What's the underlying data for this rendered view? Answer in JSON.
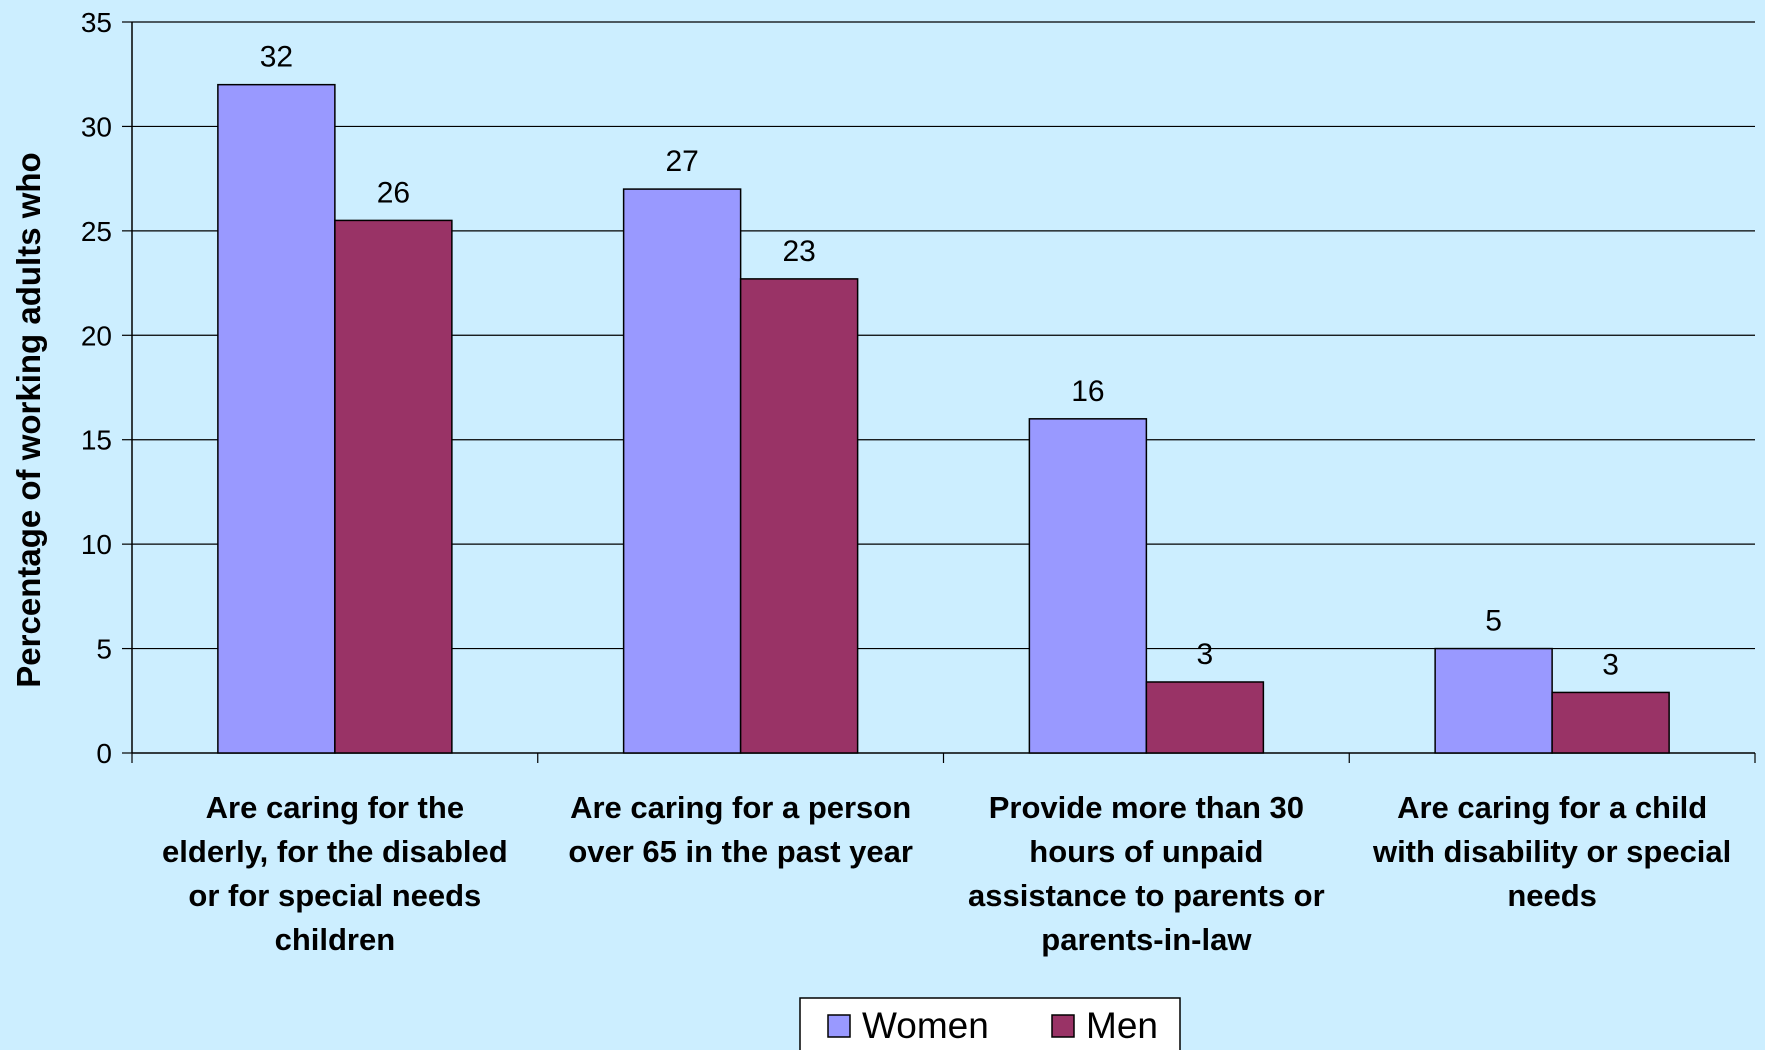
{
  "chart_data": {
    "type": "bar",
    "title": "",
    "xlabel": "",
    "ylabel": "Percentage of working adults who",
    "ylim": [
      0,
      35
    ],
    "yticks": [
      0,
      5,
      10,
      15,
      20,
      25,
      30,
      35
    ],
    "grid": true,
    "legend_position": "bottom",
    "categories": [
      [
        "Are caring for the",
        "elderly, for the disabled",
        "or for special needs",
        "children"
      ],
      [
        "Are caring for a person",
        "over 65 in the past year"
      ],
      [
        "Provide more than 30",
        "hours of unpaid",
        "assistance to parents or",
        "parents-in-law"
      ],
      [
        "Are caring for a child",
        "with disability or special",
        "needs"
      ]
    ],
    "series": [
      {
        "name": "Women",
        "color": "#9999ff",
        "values": [
          32,
          27,
          16,
          5
        ],
        "labels": [
          "32",
          "27",
          "16",
          "5"
        ]
      },
      {
        "name": "Men",
        "color": "#993366",
        "values": [
          25.5,
          22.7,
          3.4,
          2.9
        ],
        "labels": [
          "26",
          "23",
          "3",
          "3"
        ]
      }
    ],
    "plot_background": "#cceeff"
  }
}
